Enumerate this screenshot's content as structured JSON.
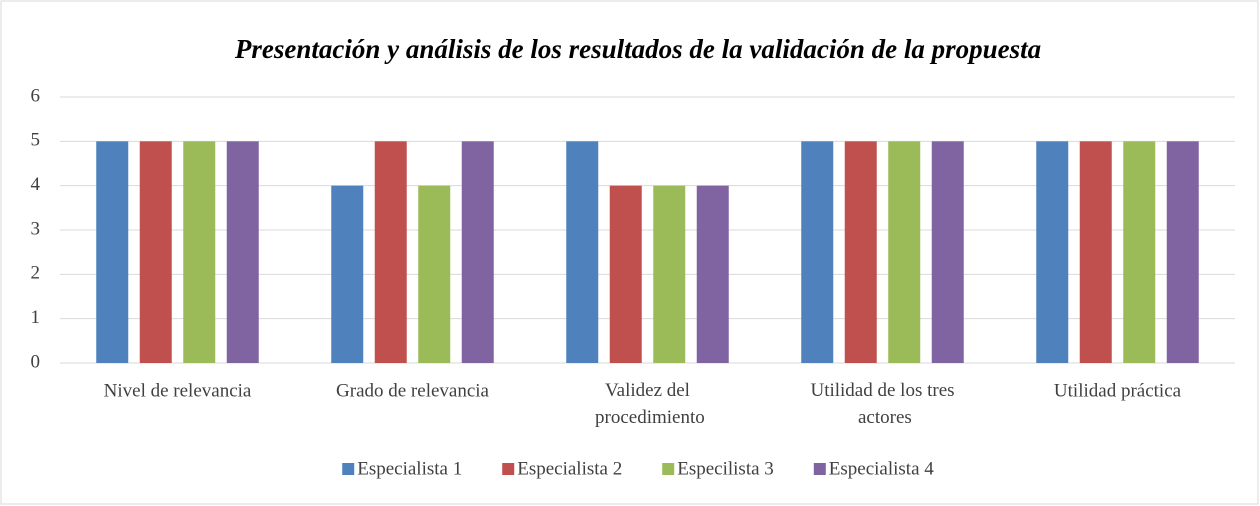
{
  "chart_data": {
    "type": "bar",
    "title": "Presentación y análisis de los resultados de la validación de la propuesta",
    "categories": [
      "Nivel de relevancia",
      "Grado de relevancia",
      "Validez del procedimiento",
      "Utilidad de los tres actores",
      "Utilidad práctica"
    ],
    "series": [
      {
        "name": "Especialista 1",
        "color": "#4f81bd",
        "values": [
          5,
          4,
          5,
          5,
          5
        ]
      },
      {
        "name": "Especialista 2",
        "color": "#c0504d",
        "values": [
          5,
          5,
          4,
          5,
          5
        ]
      },
      {
        "name": "Especilista 3",
        "color": "#9bbb59",
        "values": [
          5,
          4,
          4,
          5,
          5
        ]
      },
      {
        "name": "Especialista 4",
        "color": "#8064a2",
        "values": [
          5,
          5,
          4,
          5,
          5
        ]
      }
    ],
    "ylim": [
      0,
      6
    ],
    "yticks": [
      0,
      1,
      2,
      3,
      4,
      5,
      6
    ],
    "grid": true,
    "legend": "bottom"
  }
}
